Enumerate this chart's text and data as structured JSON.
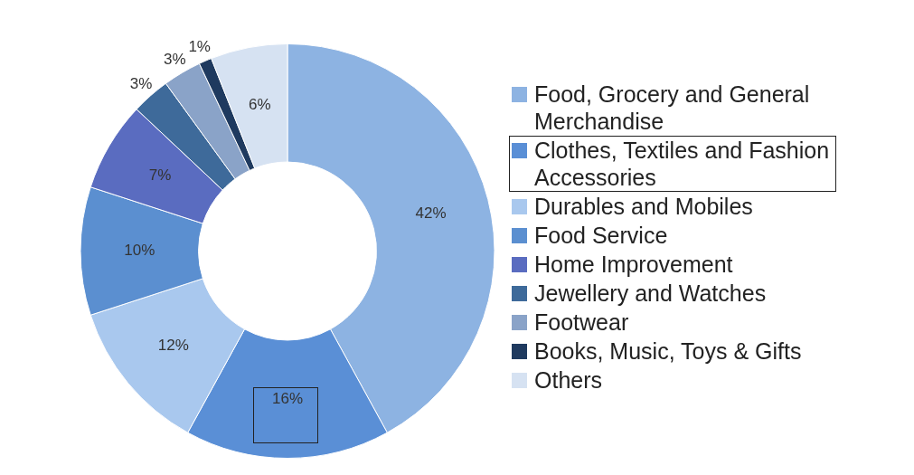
{
  "chart_data": {
    "type": "donut",
    "categories": [
      "Food, Grocery and General Merchandise",
      "Clothes, Textiles and Fashion Accessories",
      "Durables and Mobiles",
      "Food Service",
      "Home Improvement",
      "Jewellery and Watches",
      "Footwear",
      "Books, Music, Toys & Gifts",
      "Others"
    ],
    "values": [
      42,
      16,
      12,
      10,
      7,
      3,
      3,
      1,
      6
    ],
    "colors": [
      "#8db3e2",
      "#5a8fd6",
      "#a9c8ee",
      "#5b8fd0",
      "#5a6cc0",
      "#3e6a9a",
      "#8aa3c8",
      "#1f3a5f",
      "#d6e2f2"
    ],
    "value_labels": [
      "42%",
      "16%",
      "12%",
      "10%",
      "7%",
      "3%",
      "3%",
      "1%",
      "6%"
    ],
    "legend": "right"
  }
}
